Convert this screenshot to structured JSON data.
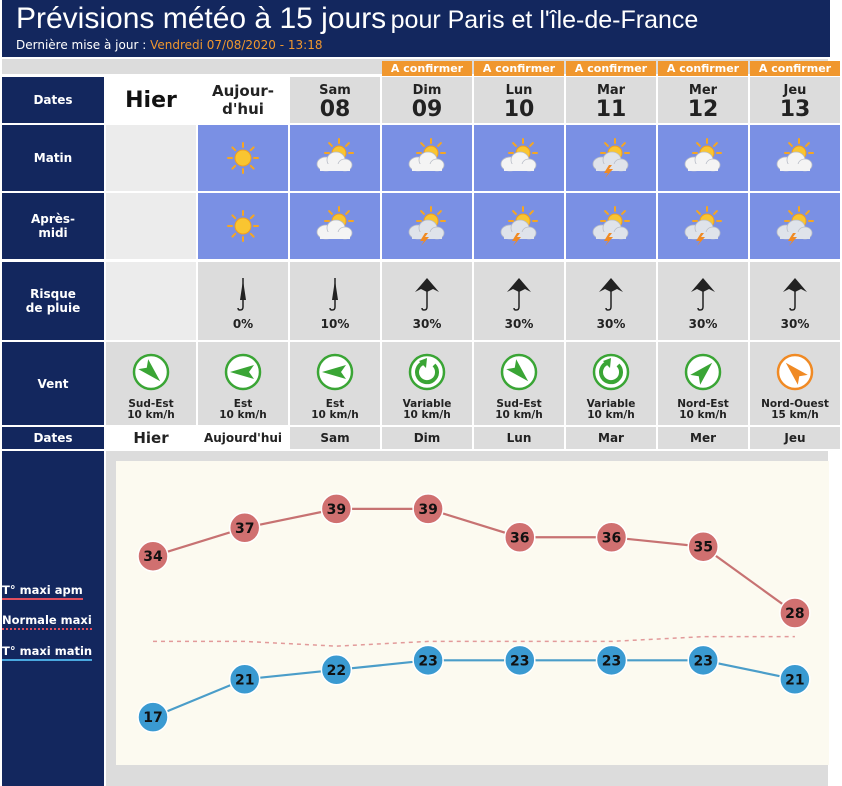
{
  "header": {
    "title_main": "Prévisions météo à 15 jours",
    "title_sub": "pour Paris et l'île-de-France",
    "update_label": "Dernière mise à jour :",
    "update_value": "Vendredi 07/08/2020 - 13:18"
  },
  "labels": {
    "dates": "Dates",
    "matin": "Matin",
    "apres_midi_1": "Après-",
    "apres_midi_2": "midi",
    "risque_1": "Risque",
    "risque_2": "de pluie",
    "vent": "Vent",
    "dates_bottom": "Dates"
  },
  "confirm_label": "A confirmer",
  "days": [
    {
      "name": "Hier",
      "num": "",
      "short": "Hier",
      "matin": "",
      "apm": "",
      "rain": "",
      "umbrella": "",
      "wind_dir": "Sud-Est",
      "wind_speed": "10 km/h",
      "wind_color": "#3aa535",
      "wind_icon": "arrow-se"
    },
    {
      "name": "Aujour-",
      "name2": "d'hui",
      "num": "",
      "short": "Aujourd'hui",
      "matin": "sun",
      "apm": "sun",
      "rain": "0%",
      "umbrella": "closed",
      "wind_dir": "Est",
      "wind_speed": "10 km/h",
      "wind_color": "#3aa535",
      "wind_icon": "arrow-w"
    },
    {
      "name": "Sam",
      "num": "08",
      "short": "Sam",
      "matin": "sun-cloud",
      "apm": "sun-cloud",
      "rain": "10%",
      "umbrella": "closed",
      "wind_dir": "Est",
      "wind_speed": "10 km/h",
      "wind_color": "#3aa535",
      "wind_icon": "arrow-w"
    },
    {
      "name": "Dim",
      "num": "09",
      "short": "Dim",
      "matin": "sun-cloud",
      "apm": "sun-storm",
      "rain": "30%",
      "umbrella": "open",
      "wind_dir": "Variable",
      "wind_speed": "10 km/h",
      "wind_color": "#3aa535",
      "wind_icon": "variable"
    },
    {
      "name": "Lun",
      "num": "10",
      "short": "Lun",
      "matin": "sun-cloud",
      "apm": "sun-storm",
      "rain": "30%",
      "umbrella": "open",
      "wind_dir": "Sud-Est",
      "wind_speed": "10 km/h",
      "wind_color": "#3aa535",
      "wind_icon": "arrow-se"
    },
    {
      "name": "Mar",
      "num": "11",
      "short": "Mar",
      "matin": "sun-storm",
      "apm": "sun-storm",
      "rain": "30%",
      "umbrella": "open",
      "wind_dir": "Variable",
      "wind_speed": "10 km/h",
      "wind_color": "#3aa535",
      "wind_icon": "variable"
    },
    {
      "name": "Mer",
      "num": "12",
      "short": "Mer",
      "matin": "sun-cloud",
      "apm": "sun-storm",
      "rain": "30%",
      "umbrella": "open",
      "wind_dir": "Nord-Est",
      "wind_speed": "10 km/h",
      "wind_color": "#3aa535",
      "wind_icon": "arrow-ne"
    },
    {
      "name": "Jeu",
      "num": "13",
      "short": "Jeu",
      "matin": "sun-cloud",
      "apm": "sun-storm",
      "rain": "30%",
      "umbrella": "open",
      "wind_dir": "Nord-Ouest",
      "wind_speed": "15 km/h",
      "wind_color": "#f08a24",
      "wind_icon": "arrow-nw"
    }
  ],
  "legend": {
    "apm": "T° maxi apm",
    "normale": "Normale maxi",
    "matin": "T° maxi matin"
  },
  "colors": {
    "navy": "#13275e",
    "orange": "#f0972e",
    "apm_line": "#c77272",
    "apm_marker": "#d07070",
    "matin_line": "#4a9dc9",
    "matin_marker": "#3a9ad1",
    "normale_line": "#e29a9a"
  },
  "chart_data": {
    "type": "line",
    "categories": [
      "Hier",
      "Aujourd'hui",
      "Sam",
      "Dim",
      "Lun",
      "Mar",
      "Mer",
      "Jeu"
    ],
    "series": [
      {
        "name": "T° maxi apm",
        "values": [
          34,
          37,
          39,
          39,
          36,
          36,
          35,
          28
        ]
      },
      {
        "name": "Normale maxi",
        "values": [
          25,
          25,
          24.5,
          25,
          25,
          25,
          25.5,
          25.5
        ]
      },
      {
        "name": "T° maxi matin",
        "values": [
          17,
          21,
          22,
          23,
          23,
          23,
          23,
          21
        ]
      }
    ],
    "ylim": [
      13,
      43
    ]
  }
}
